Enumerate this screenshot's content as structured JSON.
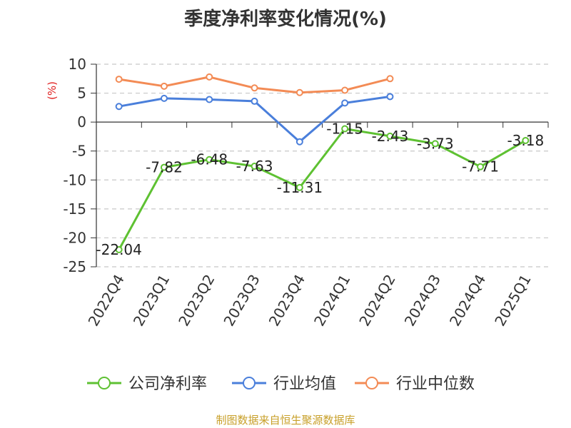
{
  "chart_data": {
    "type": "line",
    "title": "季度净利率变化情况(%)",
    "ylabel": "(%)",
    "ylim": [
      -25,
      10
    ],
    "yticks": [
      10,
      5,
      0,
      -5,
      -10,
      -15,
      -20,
      -25
    ],
    "categories": [
      "2022Q4",
      "2023Q1",
      "2023Q2",
      "2023Q3",
      "2023Q4",
      "2024Q1",
      "2024Q2",
      "2024Q3",
      "2024Q4",
      "2025Q1"
    ],
    "grid": true,
    "legend_position": "bottom",
    "series": [
      {
        "name": "公司净利率",
        "color": "#5ec132",
        "values": [
          -22.04,
          -7.82,
          -6.48,
          -7.63,
          -11.31,
          -1.15,
          -2.43,
          -3.73,
          -7.71,
          -3.18
        ],
        "labels": [
          "-22.04",
          "-7.82",
          "-6.48",
          "-7.63",
          "-11.31",
          "-1.15",
          "-2.43",
          "-3.73",
          "-7.71",
          "-3.18"
        ]
      },
      {
        "name": "行业均值",
        "color": "#4a7fdb",
        "values": [
          2.7,
          4.1,
          3.9,
          3.6,
          -3.4,
          3.3,
          4.4,
          null,
          null,
          null
        ]
      },
      {
        "name": "行业中位数",
        "color": "#f38b55",
        "values": [
          7.4,
          6.2,
          7.8,
          5.9,
          5.1,
          5.5,
          7.5,
          null,
          null,
          null
        ]
      }
    ]
  },
  "footer": "制图数据来自恒生聚源数据库"
}
